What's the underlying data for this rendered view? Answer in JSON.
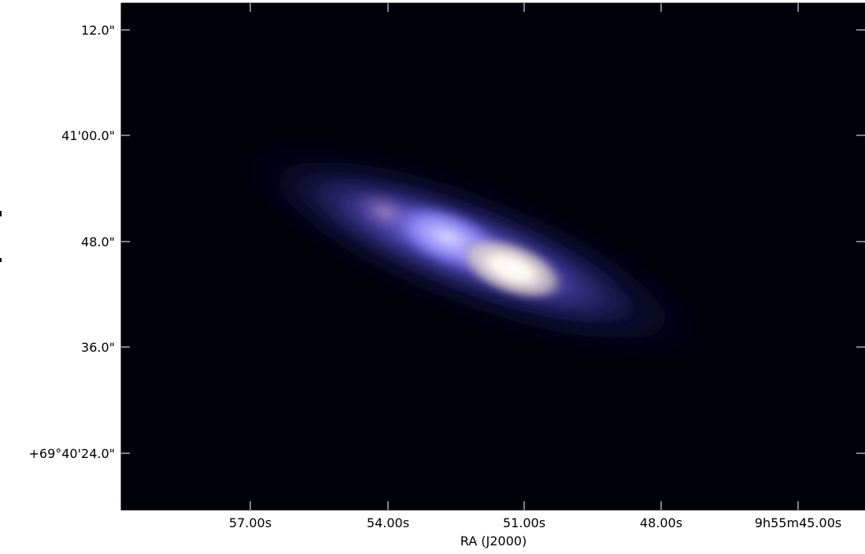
{
  "figure": {
    "kind": "astronomical-rgb-image",
    "background_color": "#01010a",
    "frame_color": "#000000",
    "x_axis": {
      "label": "RA (J2000)",
      "tick_labels": [
        "57.00s",
        "54.00s",
        "51.00s",
        "48.00s",
        "9h55m45.00s"
      ]
    },
    "y_axis": {
      "label": "",
      "tick_labels": [
        "12.0\"",
        "41'00.0\"",
        "48.0\"",
        "36.0\"",
        "+69°40'24.0\""
      ]
    },
    "galaxy": {
      "description_colors": {
        "core": "#ffffff",
        "inner_glow": "#f3e9dc",
        "blue_region": "#8d86ff",
        "outer_halo": "#5c53c6",
        "faint_disk": "#2a2a80"
      }
    }
  }
}
